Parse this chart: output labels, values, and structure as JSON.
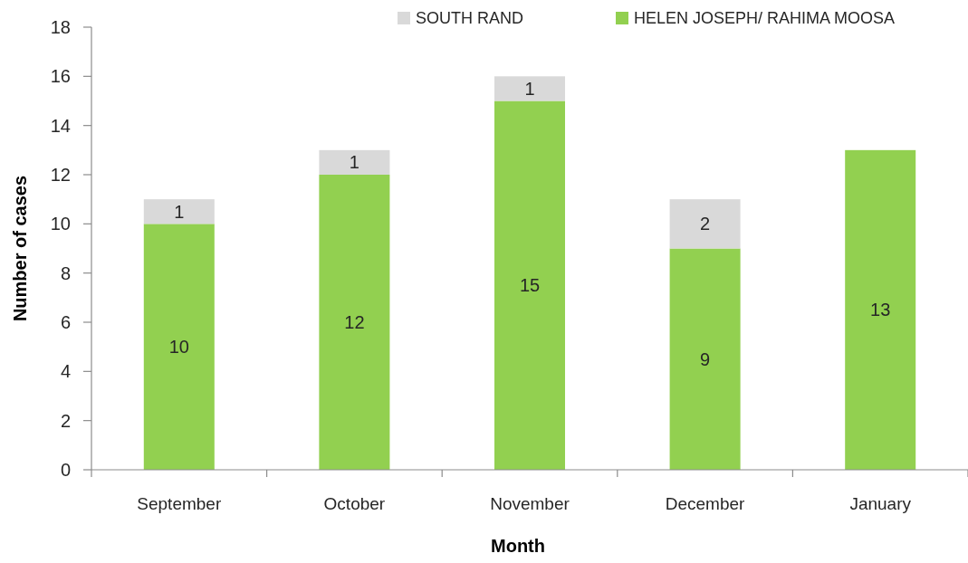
{
  "chart_data": {
    "type": "bar",
    "xlabel": "Month",
    "ylabel": "Number of cases",
    "categories": [
      "September",
      "October",
      "November",
      "December",
      "January"
    ],
    "series": [
      {
        "name": "HELEN JOSEPH/ RAHIMA MOOSA",
        "color": "#92d050",
        "values": [
          10,
          12,
          15,
          9,
          13
        ]
      },
      {
        "name": "SOUTH RAND",
        "color": "#d9d9d9",
        "values": [
          1,
          1,
          1,
          2,
          null
        ]
      }
    ],
    "stacked": true,
    "data_labels": true,
    "legend": "top right",
    "ylim": [
      0,
      18
    ],
    "yticks": [
      0,
      2,
      4,
      6,
      8,
      10,
      12,
      14,
      16,
      18
    ],
    "grid": false
  }
}
